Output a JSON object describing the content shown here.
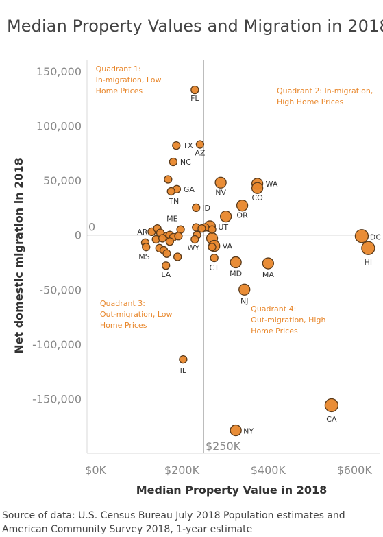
{
  "title": "Median Property Values and Migration in 2018",
  "source": [
    "Source of data: U.S. Census Bureau July 2018 Population estimates and",
    "American Community Survey 2018, 1-year estimate"
  ],
  "colors": {
    "point_fill": "#e8872c",
    "point_stroke": "#5a3a1a",
    "annotation": "#e8872c",
    "axis_text": "#888888",
    "reference_line": "#666666"
  },
  "chart_data": {
    "type": "scatter",
    "title": "Median Property Values and Migration in 2018",
    "xlabel": "Median Property Value in 2018",
    "ylabel": "Net domestic migration in 2018",
    "xlim": [
      -20000,
      660000
    ],
    "ylim": [
      -200000,
      160000
    ],
    "x_ticks": [
      {
        "value": 0,
        "label": "$0K"
      },
      {
        "value": 200000,
        "label": "$200K"
      },
      {
        "value": 400000,
        "label": "$400K"
      },
      {
        "value": 600000,
        "label": "$600K"
      }
    ],
    "y_ticks": [
      {
        "value": 150000,
        "label": "150,000"
      },
      {
        "value": 100000,
        "label": "100,000"
      },
      {
        "value": 50000,
        "label": "50,000"
      },
      {
        "value": 0,
        "label": "0"
      },
      {
        "value": -50000,
        "label": "-50,000"
      },
      {
        "value": -100000,
        "label": "-100,000"
      },
      {
        "value": -150000,
        "label": "-150,000"
      }
    ],
    "reference_lines": {
      "x": {
        "value": 250000,
        "label": "$250K"
      },
      "y": {
        "value": 0,
        "label": "0"
      }
    },
    "grid": false,
    "annotations": [
      {
        "lines": [
          "Quadrant 1:",
          "In-migration, Low",
          "Home Prices"
        ],
        "x": 0,
        "y": 150000
      },
      {
        "lines": [
          "Quadrant 2: In-migration,",
          "High Home Prices"
        ],
        "x": 420000,
        "y": 130000
      },
      {
        "lines": [
          "Quadrant 3:",
          "Out-migration, Low",
          "Home Prices"
        ],
        "x": 10000,
        "y": -65000
      },
      {
        "lines": [
          "Quadrant 4:",
          "Out-migration, High",
          "Home Prices"
        ],
        "x": 360000,
        "y": -70000
      }
    ],
    "points": [
      {
        "label": "FL",
        "x": 230000,
        "y": 133000,
        "size": 1
      },
      {
        "label": "TX",
        "x": 187000,
        "y": 82000,
        "size": 1
      },
      {
        "label": "AZ",
        "x": 242000,
        "y": 83000,
        "size": 1
      },
      {
        "label": "NC",
        "x": 180000,
        "y": 67000,
        "size": 1
      },
      {
        "label": "GA",
        "x": 188000,
        "y": 42000,
        "size": 1
      },
      {
        "label": "TN",
        "x": 175000,
        "y": 40000,
        "size": 1
      },
      {
        "label": "",
        "x": 168000,
        "y": 51000,
        "size": 1
      },
      {
        "label": "NV",
        "x": 290000,
        "y": 48000,
        "size": 2
      },
      {
        "label": "WA",
        "x": 375000,
        "y": 47000,
        "size": 2
      },
      {
        "label": "CO",
        "x": 375000,
        "y": 43000,
        "size": 2
      },
      {
        "label": "OR",
        "x": 340000,
        "y": 27000,
        "size": 2
      },
      {
        "label": "ID",
        "x": 233000,
        "y": 25000,
        "size": 1
      },
      {
        "label": "",
        "x": 302000,
        "y": 17000,
        "size": 2
      },
      {
        "label": "UT",
        "x": 265000,
        "y": 8000,
        "size": 2
      },
      {
        "label": "ME",
        "x": 197000,
        "y": 5000,
        "size": 1
      },
      {
        "label": "",
        "x": 233000,
        "y": 7000,
        "size": 1
      },
      {
        "label": "",
        "x": 254000,
        "y": 7000,
        "size": 1
      },
      {
        "label": "",
        "x": 246000,
        "y": 6000,
        "size": 1
      },
      {
        "label": "",
        "x": 270000,
        "y": 5000,
        "size": 1
      },
      {
        "label": "AR",
        "x": 130000,
        "y": 3000,
        "size": 1
      },
      {
        "label": "",
        "x": 143000,
        "y": 6000,
        "size": 1
      },
      {
        "label": "",
        "x": 150000,
        "y": 2000,
        "size": 1
      },
      {
        "label": "",
        "x": 165000,
        "y": -1000,
        "size": 1
      },
      {
        "label": "",
        "x": 172000,
        "y": 0,
        "size": 1
      },
      {
        "label": "",
        "x": 180000,
        "y": -2000,
        "size": 1
      },
      {
        "label": "",
        "x": 192000,
        "y": -1000,
        "size": 1
      },
      {
        "label": "",
        "x": 235000,
        "y": 0,
        "size": 1
      },
      {
        "label": "",
        "x": 140000,
        "y": -4000,
        "size": 1
      },
      {
        "label": "",
        "x": 155000,
        "y": -3000,
        "size": 1
      },
      {
        "label": "",
        "x": 172000,
        "y": -6000,
        "size": 1
      },
      {
        "label": "",
        "x": 115000,
        "y": -7000,
        "size": 1
      },
      {
        "label": "",
        "x": 117000,
        "y": -11000,
        "size": 1
      },
      {
        "label": "WY",
        "x": 230000,
        "y": -4000,
        "size": 1
      },
      {
        "label": "",
        "x": 270000,
        "y": -3000,
        "size": 2
      },
      {
        "label": "VA",
        "x": 275000,
        "y": -10000,
        "size": 2
      },
      {
        "label": "",
        "x": 270000,
        "y": -11000,
        "size": 1
      },
      {
        "label": "MS",
        "x": 148000,
        "y": -12000,
        "size": 1
      },
      {
        "label": "",
        "x": 158000,
        "y": -14000,
        "size": 1
      },
      {
        "label": "",
        "x": 165000,
        "y": -17000,
        "size": 1
      },
      {
        "label": "",
        "x": 190000,
        "y": -20000,
        "size": 1
      },
      {
        "label": "CT",
        "x": 275000,
        "y": -21000,
        "size": 1
      },
      {
        "label": "MD",
        "x": 325000,
        "y": -25000,
        "size": 2
      },
      {
        "label": "MA",
        "x": 400000,
        "y": -26000,
        "size": 2
      },
      {
        "label": "LA",
        "x": 163000,
        "y": -28000,
        "size": 1
      },
      {
        "label": "NJ",
        "x": 345000,
        "y": -50000,
        "size": 2
      },
      {
        "label": "DC",
        "x": 617000,
        "y": -1000,
        "size": 3
      },
      {
        "label": "HI",
        "x": 632000,
        "y": -12000,
        "size": 3
      },
      {
        "label": "IL",
        "x": 203000,
        "y": -114000,
        "size": 1
      },
      {
        "label": "CA",
        "x": 547000,
        "y": -156000,
        "size": 3
      },
      {
        "label": "NY",
        "x": 325000,
        "y": -179000,
        "size": 2
      }
    ]
  }
}
